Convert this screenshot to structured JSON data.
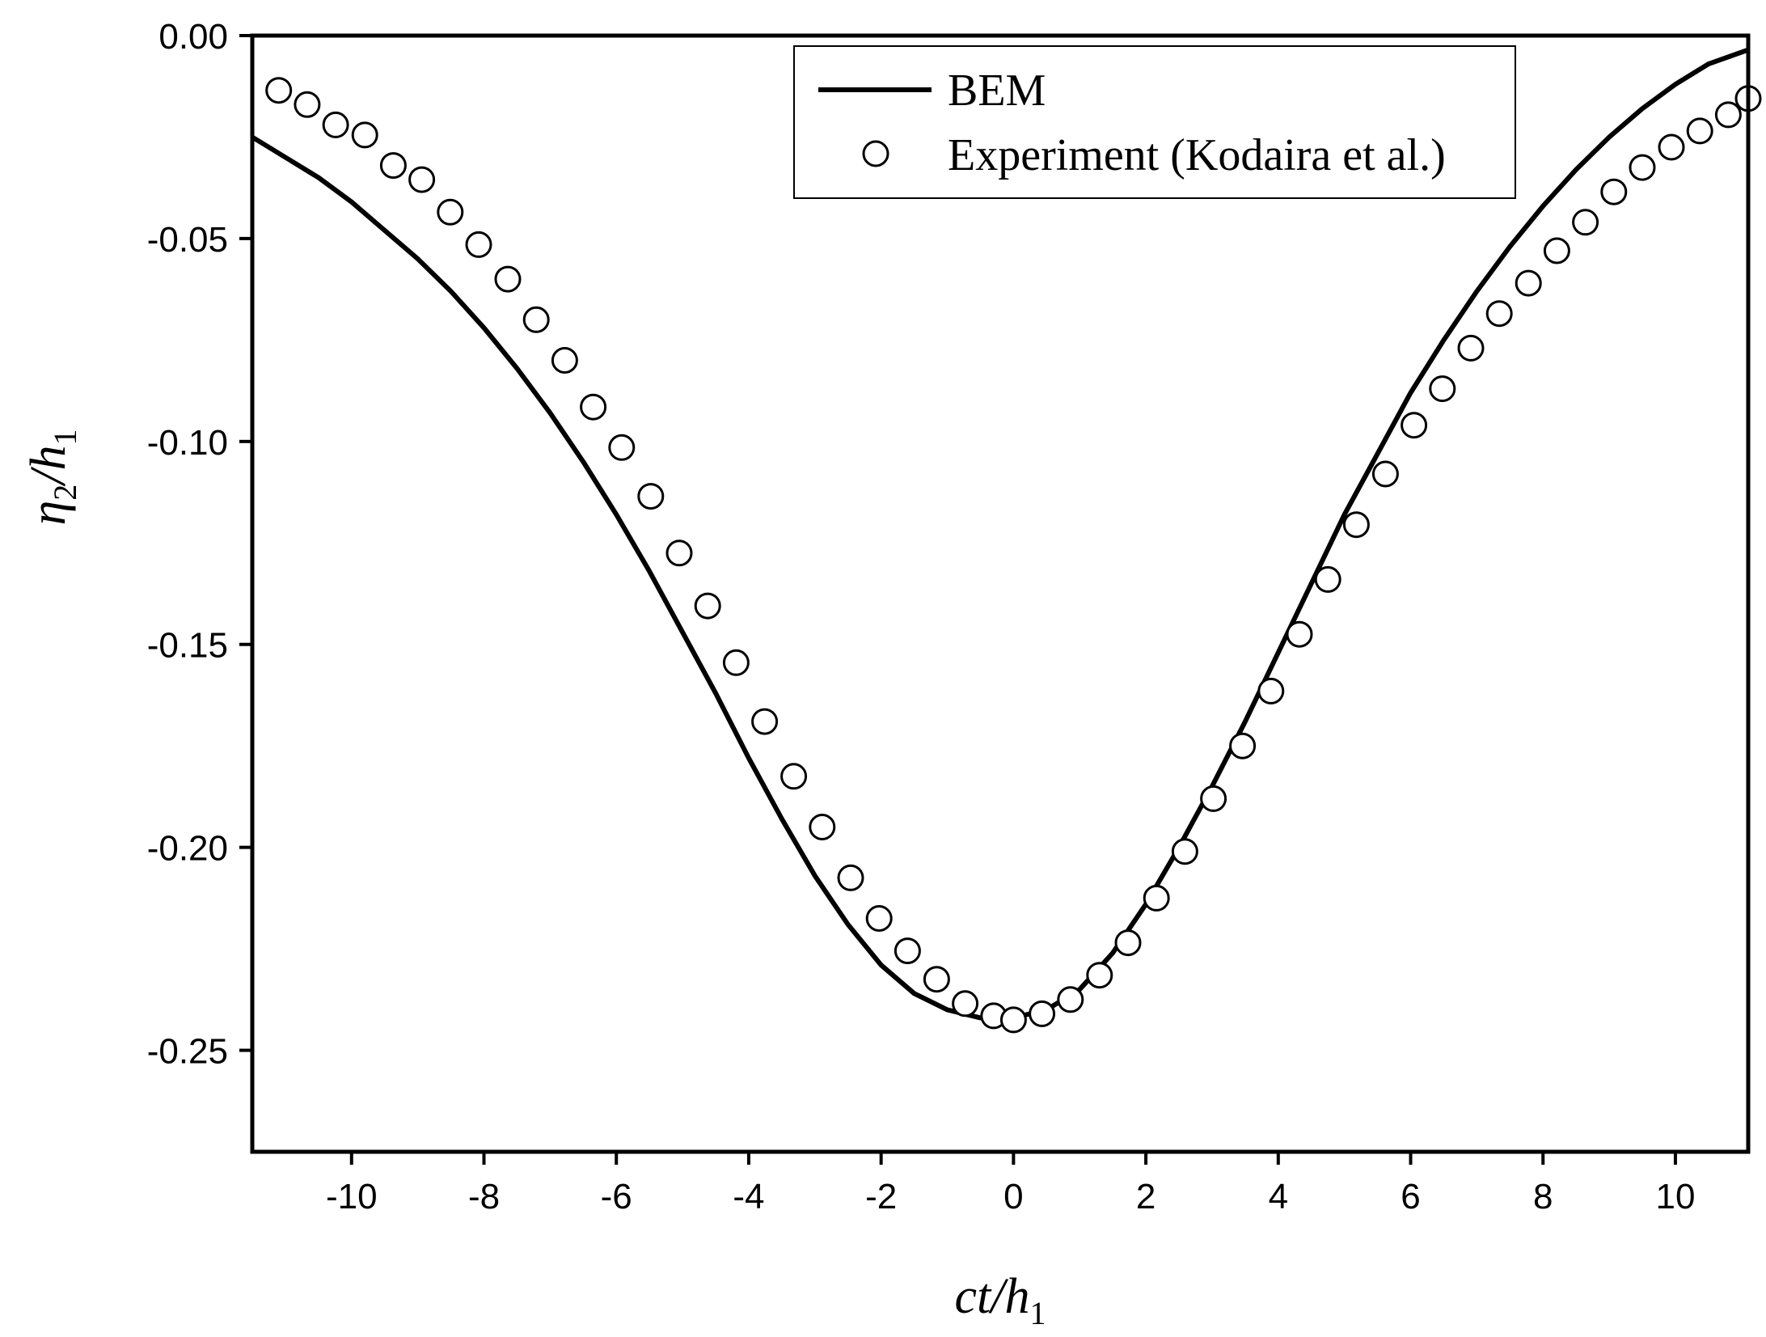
{
  "chart_data": {
    "type": "line",
    "xlabel": {
      "main": "ct/h",
      "sub": "1"
    },
    "ylabel": {
      "main": "η",
      "sub1": "2",
      "mid": "/h",
      "sub2": "1"
    },
    "xlim": [
      -11.5,
      11.1
    ],
    "ylim": [
      -0.275,
      0.0
    ],
    "x_ticks": [
      -10,
      -8,
      -6,
      -4,
      -2,
      0,
      2,
      4,
      6,
      8,
      10
    ],
    "x_tick_labels": [
      "-10",
      "-8",
      "-6",
      "-4",
      "-2",
      "0",
      "2",
      "4",
      "6",
      "8",
      "10"
    ],
    "y_ticks": [
      0.0,
      -0.05,
      -0.1,
      -0.15,
      -0.2,
      -0.25
    ],
    "y_tick_labels": [
      "0.00",
      "-0.05",
      "-0.10",
      "-0.15",
      "-0.20",
      "-0.25"
    ],
    "legend_position": "top-right",
    "legend": [
      {
        "label": "BEM",
        "marker": "line"
      },
      {
        "label": "Experiment (Kodaira et al.)",
        "marker": "circle"
      }
    ],
    "series": [
      {
        "name": "BEM",
        "style": "line",
        "x": [
          -11.5,
          -11.0,
          -10.5,
          -10.0,
          -9.5,
          -9.0,
          -8.5,
          -8.0,
          -7.5,
          -7.0,
          -6.5,
          -6.0,
          -5.5,
          -5.0,
          -4.5,
          -4.0,
          -3.5,
          -3.0,
          -2.5,
          -2.0,
          -1.5,
          -1.0,
          -0.5,
          0.0,
          0.5,
          1.0,
          1.5,
          2.0,
          2.5,
          3.0,
          3.5,
          4.0,
          4.5,
          5.0,
          5.5,
          6.0,
          6.5,
          7.0,
          7.5,
          8.0,
          8.5,
          9.0,
          9.5,
          10.0,
          10.5,
          11.1
        ],
        "y": [
          -0.025,
          -0.03,
          -0.035,
          -0.041,
          -0.048,
          -0.055,
          -0.063,
          -0.072,
          -0.082,
          -0.093,
          -0.105,
          -0.118,
          -0.132,
          -0.147,
          -0.162,
          -0.178,
          -0.193,
          -0.207,
          -0.219,
          -0.229,
          -0.236,
          -0.24,
          -0.242,
          -0.242,
          -0.24,
          -0.235,
          -0.226,
          -0.214,
          -0.2,
          -0.185,
          -0.169,
          -0.152,
          -0.135,
          -0.118,
          -0.103,
          -0.088,
          -0.075,
          -0.063,
          -0.052,
          -0.042,
          -0.033,
          -0.025,
          -0.018,
          -0.012,
          -0.007,
          -0.0035
        ]
      },
      {
        "name": "Experiment (Kodaira et al.)",
        "style": "scatter",
        "x": [
          -11.1,
          -10.67,
          -10.24,
          -9.8,
          -9.37,
          -8.94,
          -8.51,
          -8.08,
          -7.64,
          -7.21,
          -6.78,
          -6.35,
          -5.92,
          -5.48,
          -5.05,
          -4.62,
          -4.19,
          -3.76,
          -3.32,
          -2.89,
          -2.46,
          -2.03,
          -1.6,
          -1.16,
          -0.73,
          -0.3,
          0.0,
          0.43,
          0.86,
          1.3,
          1.73,
          2.16,
          2.59,
          3.02,
          3.46,
          3.89,
          4.32,
          4.75,
          5.18,
          5.62,
          6.05,
          6.48,
          6.91,
          7.34,
          7.78,
          8.21,
          8.64,
          9.07,
          9.5,
          9.94,
          10.37,
          10.8,
          11.1
        ],
        "y": [
          -0.0135,
          -0.017,
          -0.022,
          -0.0245,
          -0.032,
          -0.0355,
          -0.0435,
          -0.0515,
          -0.06,
          -0.07,
          -0.08,
          -0.0915,
          -0.1015,
          -0.1135,
          -0.1275,
          -0.1405,
          -0.1545,
          -0.169,
          -0.1825,
          -0.195,
          -0.2075,
          -0.2175,
          -0.2255,
          -0.2325,
          -0.2385,
          -0.2415,
          -0.2425,
          -0.241,
          -0.2375,
          -0.2315,
          -0.2235,
          -0.2125,
          -0.201,
          -0.188,
          -0.175,
          -0.1615,
          -0.1475,
          -0.134,
          -0.1205,
          -0.108,
          -0.096,
          -0.087,
          -0.077,
          -0.0685,
          -0.061,
          -0.053,
          -0.046,
          -0.0385,
          -0.0325,
          -0.0275,
          -0.0235,
          -0.0195,
          -0.0155
        ]
      }
    ]
  }
}
